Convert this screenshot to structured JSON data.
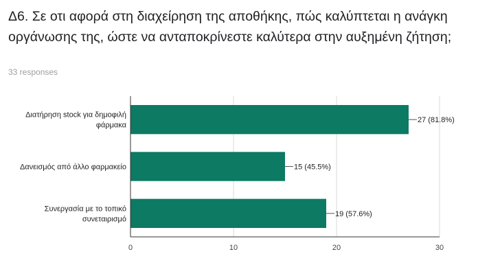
{
  "question": {
    "title": "Δ6. Σε οτι αφορά στη διαχείρηση της αποθήκης, πώς καλύπτεται η ανάγκη οργάνωσης της, ώστε να ανταποκρίνεστε καλύτερα στην αυξημένη ζήτηση;",
    "responses": "33 responses"
  },
  "chart_data": {
    "type": "bar",
    "orientation": "horizontal",
    "categories": [
      [
        "Διατήρηση stock για δημοφιλή",
        "φάρμακα"
      ],
      [
        "Δανεισμός από άλλο φαρμακείο"
      ],
      [
        "Συνεργασία με το τοπικό",
        "συνεταιρισμό"
      ]
    ],
    "values": [
      27,
      15,
      19
    ],
    "data_labels": [
      "27 (81.8%)",
      "15 (45.5%)",
      "19 (57.6%)"
    ],
    "xlim": [
      0,
      30
    ],
    "xticks": [
      0,
      10,
      20,
      30
    ],
    "grid": true,
    "bar_color": "#0d7a63",
    "grid_color": "#d9d9d9",
    "axis_color": "#333333"
  }
}
